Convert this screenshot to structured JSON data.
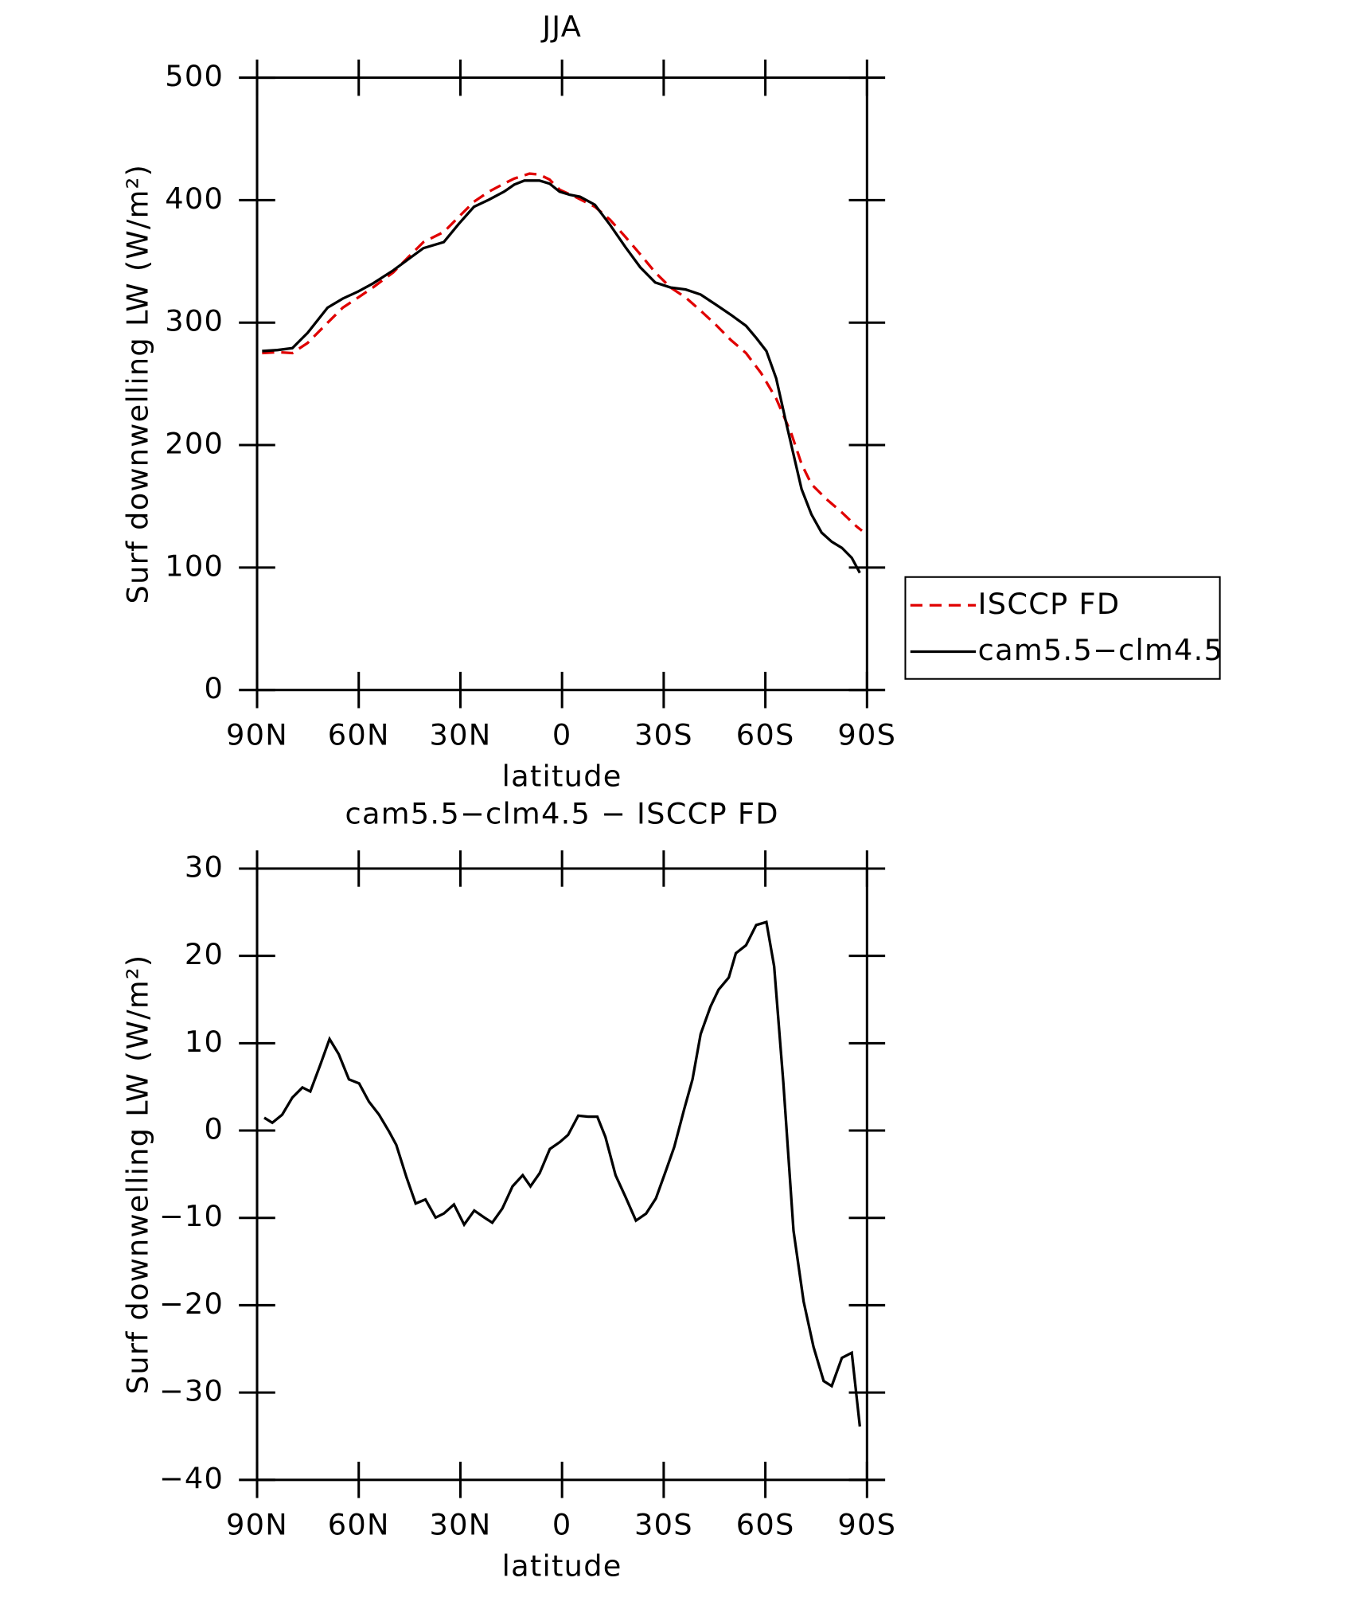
{
  "chart_data": [
    {
      "type": "line",
      "title": "JJA",
      "x_label": "latitude",
      "y_label": "Surf downwelling LW (W/m²)",
      "xlim": [
        90,
        -90
      ],
      "xticks": [
        {
          "value": 90,
          "label": "90N"
        },
        {
          "value": 60,
          "label": "60N"
        },
        {
          "value": 30,
          "label": "30N"
        },
        0,
        {
          "value": -30,
          "label": "30S"
        },
        {
          "value": -60,
          "label": "60S"
        },
        {
          "value": -90,
          "label": "90S"
        }
      ],
      "ylim": [
        0,
        500
      ],
      "yticks": [
        0,
        100,
        200,
        300,
        400,
        500
      ],
      "legend": "outside-right",
      "series": [
        {
          "name": "ISCCP FD",
          "color": "#e00000",
          "dash": true,
          "x": [
            88.5,
            84.0,
            79.6,
            75.1,
            69.2,
            64.7,
            60.2,
            55.8,
            49.8,
            45.4,
            40.9,
            34.9,
            30.5,
            26.0,
            21.6,
            17.1,
            14.1,
            9.6,
            6.7,
            3.7,
            0.7,
            -3.8,
            -9.7,
            -14.2,
            -18.7,
            -23.1,
            -27.5,
            -32.0,
            -36.5,
            -40.9,
            -45.4,
            -49.8,
            -54.3,
            -58.8,
            -63.2,
            -67.7,
            -70.7,
            -73.6,
            -78.1,
            -82.6,
            -87.0,
            -88.5
          ],
          "values": [
            275.1,
            275.9,
            275.1,
            283.4,
            299.8,
            312.2,
            320.4,
            328.7,
            341.0,
            353.4,
            365.7,
            374.0,
            386.3,
            398.7,
            406.9,
            413.5,
            417.6,
            421.7,
            420.9,
            416.8,
            408.6,
            402.8,
            394.6,
            383.9,
            369.9,
            355.8,
            341.0,
            328.7,
            320.4,
            309.7,
            298.2,
            285.8,
            275.1,
            258.6,
            238.0,
            209.2,
            184.5,
            168.0,
            155.7,
            145.0,
            133.4,
            130.1
          ]
        },
        {
          "name": "cam5.5−clm4.5",
          "color": "#000000",
          "dash": false,
          "x": [
            88.5,
            84.0,
            79.6,
            75.1,
            69.2,
            64.7,
            60.2,
            55.8,
            49.8,
            45.4,
            40.9,
            34.9,
            30.5,
            26.0,
            21.6,
            17.1,
            14.1,
            11.1,
            6.7,
            3.7,
            0.7,
            -2.3,
            -5.3,
            -9.7,
            -14.2,
            -18.7,
            -23.1,
            -27.5,
            -32.0,
            -36.5,
            -40.9,
            -45.4,
            -49.8,
            -54.3,
            -57.3,
            -60.3,
            -63.2,
            -66.2,
            -70.7,
            -73.6,
            -76.6,
            -79.6,
            -82.6,
            -85.5,
            -87.9
          ],
          "values": [
            276.8,
            277.6,
            279.2,
            291.6,
            312.2,
            319.6,
            325.4,
            332.0,
            342.7,
            351.7,
            360.8,
            365.7,
            380.6,
            394.6,
            400.3,
            406.9,
            412.7,
            416.0,
            416.0,
            413.5,
            406.9,
            404.4,
            402.8,
            396.2,
            379.7,
            361.6,
            345.1,
            332.8,
            328.7,
            327.0,
            322.9,
            314.7,
            306.4,
            297.4,
            287.5,
            276.8,
            254.5,
            217.5,
            164.0,
            143.3,
            128.5,
            121.1,
            116.1,
            107.9,
            95.6
          ]
        }
      ]
    },
    {
      "type": "line",
      "title": "cam5.5−clm4.5 − ISCCP FD",
      "x_label": "latitude",
      "y_label": "Surf downwelling LW (W/m²)",
      "xlim": [
        90,
        -90
      ],
      "xticks": [
        {
          "value": 90,
          "label": "90N"
        },
        {
          "value": 60,
          "label": "60N"
        },
        {
          "value": 30,
          "label": "30N"
        },
        0,
        {
          "value": -30,
          "label": "30S"
        },
        {
          "value": -60,
          "label": "60S"
        },
        {
          "value": -90,
          "label": "90S"
        }
      ],
      "ylim": [
        -40,
        30
      ],
      "yticks": [
        {
          "value": -40,
          "label": "−40"
        },
        {
          "value": -30,
          "label": "−30"
        },
        {
          "value": -20,
          "label": "−20"
        },
        {
          "value": -10,
          "label": "−10"
        },
        0,
        10,
        20,
        30
      ],
      "series": [
        {
          "color": "#000000",
          "dash": false,
          "x": [
            87.9,
            85.5,
            82.6,
            79.6,
            76.6,
            74.3,
            71.3,
            68.6,
            65.9,
            62.9,
            59.9,
            57.0,
            54.0,
            51.0,
            48.9,
            45.9,
            43.2,
            40.3,
            37.3,
            34.9,
            31.9,
            28.9,
            25.9,
            22.9,
            20.6,
            17.6,
            14.6,
            11.6,
            9.3,
            6.6,
            3.6,
            0.6,
            -1.8,
            -4.8,
            -7.7,
            -10.4,
            -12.8,
            -15.8,
            -18.8,
            -21.8,
            -24.8,
            -27.7,
            -30.7,
            -33.1,
            -36.1,
            -38.5,
            -40.9,
            -43.8,
            -46.2,
            -49.2,
            -51.3,
            -54.3,
            -57.3,
            -60.3,
            -62.6,
            -65.3,
            -68.3,
            -71.3,
            -74.2,
            -77.2,
            -79.6,
            -82.6,
            -85.5,
            -87.9
          ],
          "values": [
            1.47,
            0.89,
            1.81,
            3.78,
            4.93,
            4.47,
            7.59,
            10.48,
            8.75,
            5.86,
            5.4,
            3.32,
            1.81,
            -0.15,
            -1.65,
            -5.35,
            -8.35,
            -7.89,
            -9.97,
            -9.51,
            -8.47,
            -10.78,
            -9.16,
            -9.97,
            -10.55,
            -8.93,
            -6.39,
            -5.12,
            -6.39,
            -4.89,
            -2.11,
            -1.3,
            -0.5,
            1.7,
            1.58,
            1.58,
            -0.73,
            -5.12,
            -7.66,
            -10.31,
            -9.51,
            -7.77,
            -4.54,
            -1.88,
            2.51,
            5.86,
            11.06,
            14.17,
            16.14,
            17.52,
            20.3,
            21.22,
            23.53,
            23.88,
            18.8,
            5.51,
            -11.47,
            -19.55,
            -24.75,
            -28.68,
            -29.26,
            -26.02,
            -25.45,
            -33.88
          ]
        }
      ]
    }
  ]
}
